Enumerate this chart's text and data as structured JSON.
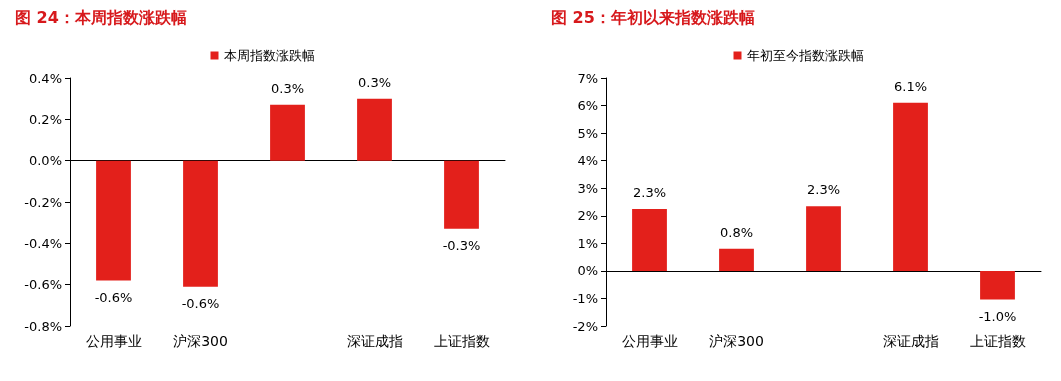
{
  "chart_data": [
    {
      "type": "bar",
      "title": "图 24：本周指数涨跌幅",
      "categories": [
        "公用事业",
        "沪深300",
        null,
        "深证成指",
        "上证指数"
      ],
      "series": [
        {
          "name": "本周指数涨跌幅",
          "color": "#e3201b",
          "values": [
            -0.58,
            -0.61,
            0.27,
            0.3,
            -0.33
          ],
          "value_labels": [
            "-0.6%",
            "-0.6%",
            "0.3%",
            "0.3%",
            "-0.3%"
          ]
        }
      ],
      "ylim": [
        -0.8,
        0.4
      ],
      "yticks": [
        {
          "value": -0.8,
          "label": "-0.8%"
        },
        {
          "value": -0.6,
          "label": "-0.6%"
        },
        {
          "value": -0.4,
          "label": "-0.4%"
        },
        {
          "value": -0.2,
          "label": "-0.2%"
        },
        {
          "value": 0,
          "label": "0.0%"
        },
        {
          "value": 0.2,
          "label": "0.2%"
        },
        {
          "value": 0.4,
          "label": "0.4%"
        }
      ],
      "legend": "top"
    },
    {
      "type": "bar",
      "title": "图 25：年初以来指数涨跌幅",
      "categories": [
        "公用事业",
        "沪深300",
        null,
        "深证成指",
        "上证指数"
      ],
      "series": [
        {
          "name": "年初至今指数涨跌幅",
          "color": "#e3201b",
          "values": [
            2.25,
            0.8,
            2.35,
            6.1,
            -1.04
          ],
          "value_labels": [
            "2.3%",
            "0.8%",
            "2.3%",
            "6.1%",
            "-1.0%"
          ]
        }
      ],
      "ylim": [
        -2,
        7
      ],
      "yticks": [
        {
          "value": -2,
          "label": "-2%"
        },
        {
          "value": -1,
          "label": "-1%"
        },
        {
          "value": 0,
          "label": "0%"
        },
        {
          "value": 1,
          "label": "1%"
        },
        {
          "value": 2,
          "label": "2%"
        },
        {
          "value": 3,
          "label": "3%"
        },
        {
          "value": 4,
          "label": "4%"
        },
        {
          "value": 5,
          "label": "5%"
        },
        {
          "value": 6,
          "label": "6%"
        },
        {
          "value": 7,
          "label": "7%"
        }
      ],
      "legend": "top"
    }
  ]
}
